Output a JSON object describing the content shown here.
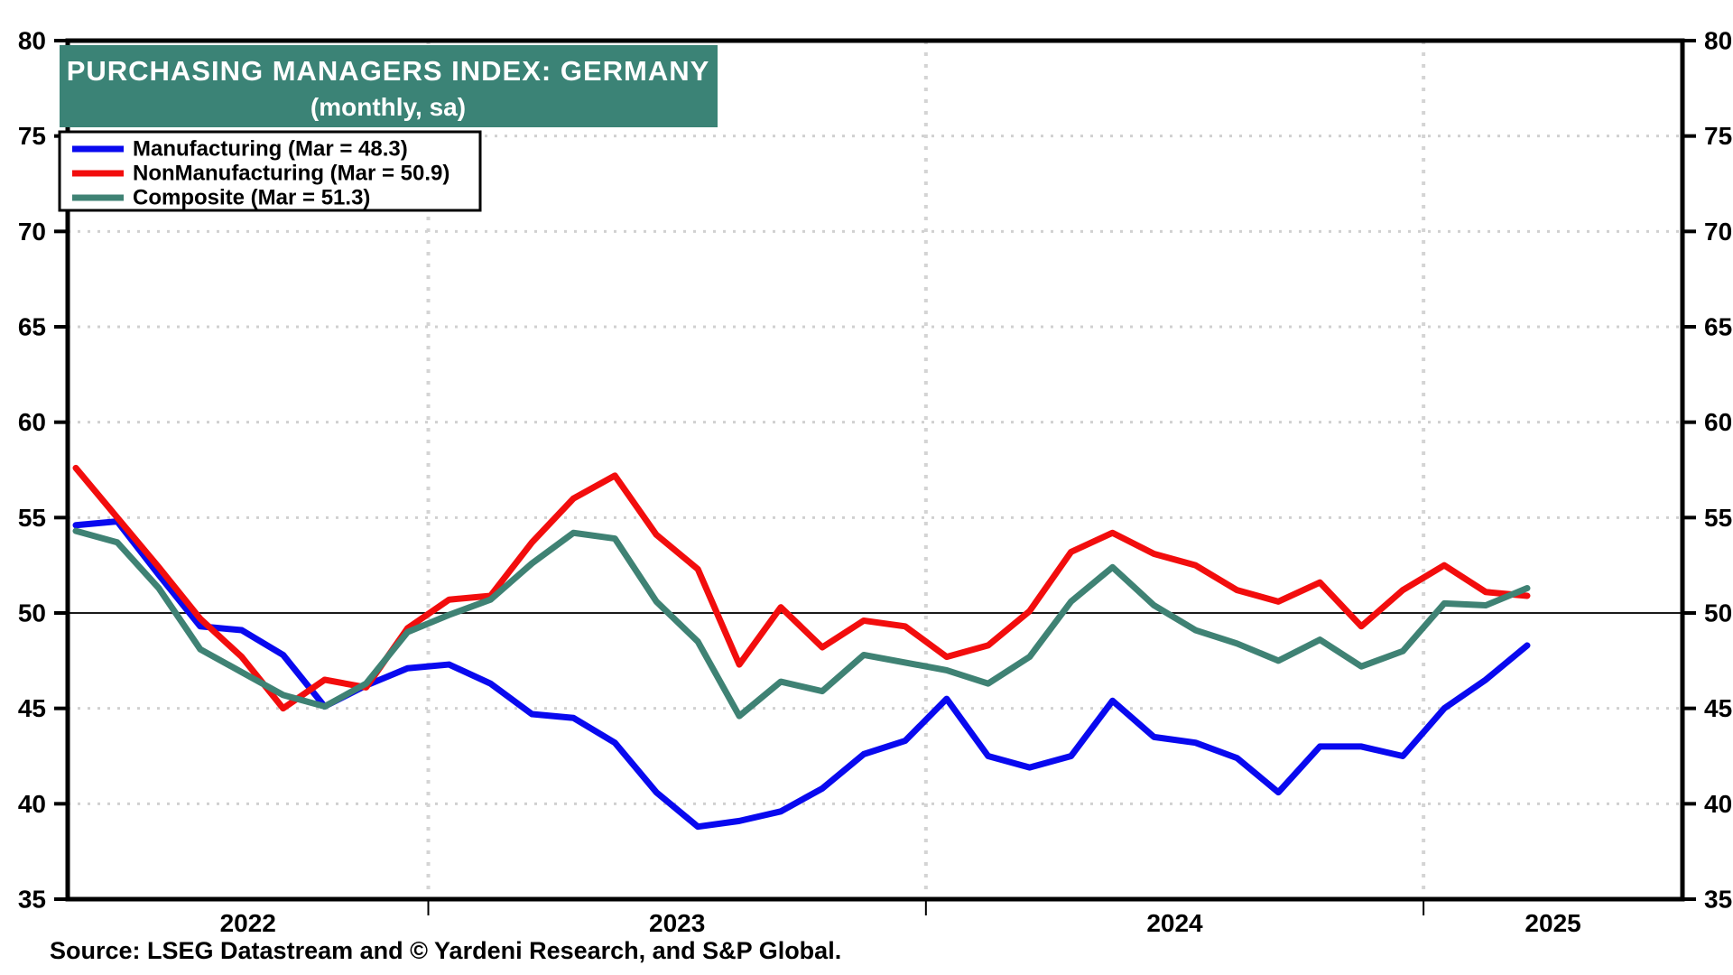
{
  "title": {
    "line1": "PURCHASING MANAGERS INDEX: GERMANY",
    "line2": "(monthly, sa)"
  },
  "legend": [
    {
      "label": "Manufacturing (Mar = 48.3)",
      "color": "#0909ef"
    },
    {
      "label": "NonManufacturing (Mar = 50.9)",
      "color": "#f20d0d"
    },
    {
      "label": "Composite (Mar = 51.3)",
      "color": "#3f8274"
    }
  ],
  "source_note": "Source: LSEG Datastream and © Yardeni Research, and S&P Global.",
  "banner_color": "#3b8376",
  "chart_data": {
    "type": "line",
    "title": "PURCHASING MANAGERS INDEX: GERMANY",
    "subtitle": "(monthly, sa)",
    "xlabel": "",
    "ylabel": "",
    "ylim": [
      35,
      80
    ],
    "yticks": [
      35,
      40,
      45,
      50,
      55,
      60,
      65,
      70,
      75,
      80
    ],
    "reference_line": 50,
    "grid": {
      "horizontal": "dotted",
      "vertical": "dashed at year boundaries",
      "legend_position": "top-left"
    },
    "x_year_labels": [
      "2022",
      "2023",
      "2024",
      "2025"
    ],
    "year_start_indices": [
      9,
      21,
      33
    ],
    "x_months": [
      "Apr 2022",
      "May 2022",
      "Jun 2022",
      "Jul 2022",
      "Aug 2022",
      "Sep 2022",
      "Oct 2022",
      "Nov 2022",
      "Dec 2022",
      "Jan 2023",
      "Feb 2023",
      "Mar 2023",
      "Apr 2023",
      "May 2023",
      "Jun 2023",
      "Jul 2023",
      "Aug 2023",
      "Sep 2023",
      "Oct 2023",
      "Nov 2023",
      "Dec 2023",
      "Jan 2024",
      "Feb 2024",
      "Mar 2024",
      "Apr 2024",
      "May 2024",
      "Jun 2024",
      "Jul 2024",
      "Aug 2024",
      "Sep 2024",
      "Oct 2024",
      "Nov 2024",
      "Dec 2024",
      "Jan 2025",
      "Feb 2025",
      "Mar 2025"
    ],
    "series": [
      {
        "name": "Manufacturing",
        "color": "#0909ef",
        "last_month": "Mar",
        "last_value": 48.3,
        "values": [
          54.6,
          54.8,
          52.0,
          49.3,
          49.1,
          47.8,
          45.1,
          46.2,
          47.1,
          47.3,
          46.3,
          44.7,
          44.5,
          43.2,
          40.6,
          38.8,
          39.1,
          39.6,
          40.8,
          42.6,
          43.3,
          45.5,
          42.5,
          41.9,
          42.5,
          45.4,
          43.5,
          43.2,
          42.4,
          40.6,
          43.0,
          43.0,
          42.5,
          45.0,
          46.5,
          48.3
        ]
      },
      {
        "name": "NonManufacturing",
        "color": "#f20d0d",
        "last_month": "Mar",
        "last_value": 50.9,
        "values": [
          57.6,
          55.0,
          52.4,
          49.7,
          47.7,
          45.0,
          46.5,
          46.1,
          49.2,
          50.7,
          50.9,
          53.7,
          56.0,
          57.2,
          54.1,
          52.3,
          47.3,
          50.3,
          48.2,
          49.6,
          49.3,
          47.7,
          48.3,
          50.1,
          53.2,
          54.2,
          53.1,
          52.5,
          51.2,
          50.6,
          51.6,
          49.3,
          51.2,
          52.5,
          51.1,
          50.9
        ]
      },
      {
        "name": "Composite",
        "color": "#3f8274",
        "last_month": "Mar",
        "last_value": 51.3,
        "values": [
          54.3,
          53.7,
          51.3,
          48.1,
          46.9,
          45.7,
          45.1,
          46.3,
          49.0,
          49.9,
          50.7,
          52.6,
          54.2,
          53.9,
          50.6,
          48.5,
          44.6,
          46.4,
          45.9,
          47.8,
          47.4,
          47.0,
          46.3,
          47.7,
          50.6,
          52.4,
          50.4,
          49.1,
          48.4,
          47.5,
          48.6,
          47.2,
          48.0,
          50.5,
          50.4,
          51.3
        ]
      }
    ]
  }
}
